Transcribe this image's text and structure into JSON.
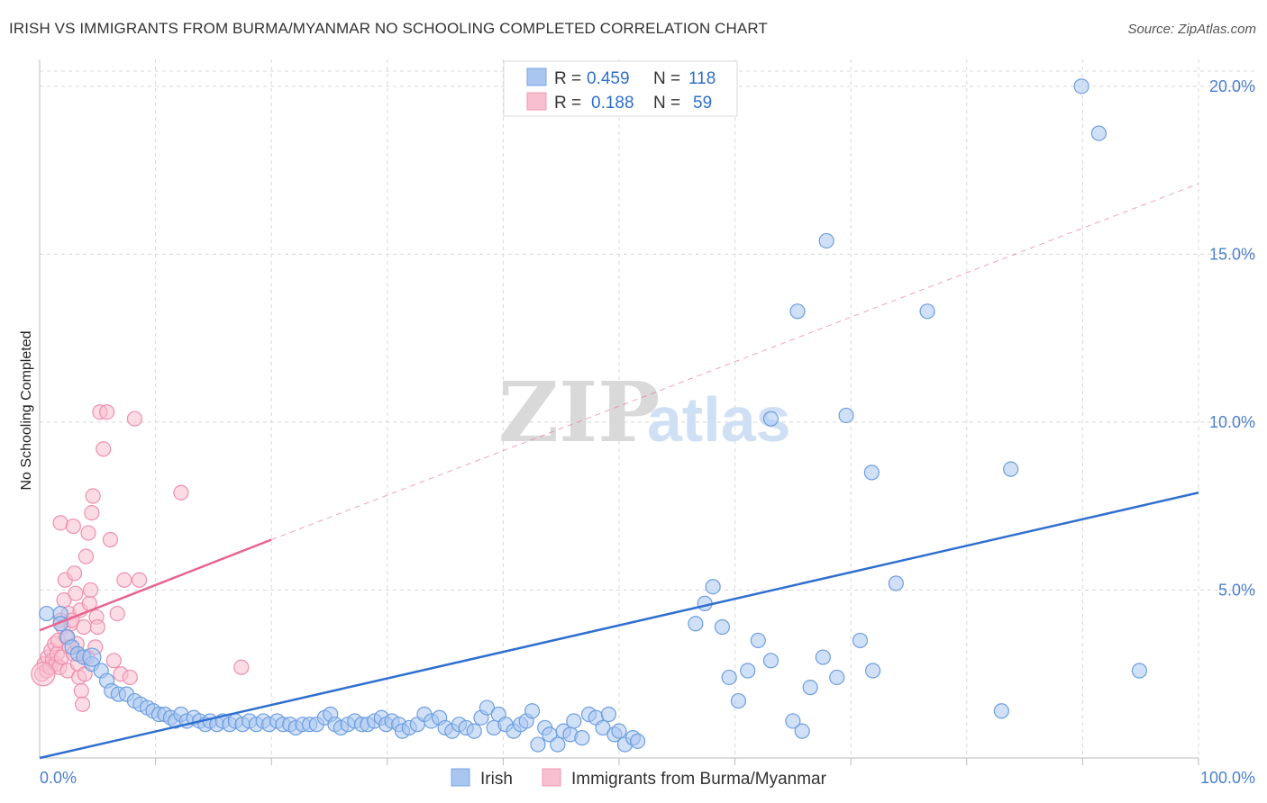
{
  "title": "IRISH VS IMMIGRANTS FROM BURMA/MYANMAR NO SCHOOLING COMPLETED CORRELATION CHART",
  "source": "Source: ZipAtlas.com",
  "watermark": {
    "zip": "ZIP",
    "atlas": "atlas"
  },
  "legend": {
    "r_label": "R =",
    "n_label": "N =",
    "rows": [
      {
        "name": "Irish",
        "r": "0.459",
        "n": "118",
        "color": "#7ba7e3"
      },
      {
        "name": "Immigrants from Burma/Myanmar",
        "r": "0.188",
        "n": "59",
        "color": "#f29ab5"
      }
    ]
  },
  "colors": {
    "irish_fill": "#a9c6f0",
    "irish_stroke": "#6d9ee0",
    "irish_line": "#2f6fd0",
    "burma_fill": "#f7bfd0",
    "burma_stroke": "#ef8fae",
    "burma_line": "#e8648f",
    "grid": "#d8d8d8",
    "tick": "#4a7fd0"
  },
  "chart_data": {
    "type": "scatter",
    "title": "IRISH VS IMMIGRANTS FROM BURMA/MYANMAR NO SCHOOLING COMPLETED CORRELATION CHART",
    "xlabel": "",
    "ylabel": "No Schooling Completed",
    "xlim": [
      0,
      100
    ],
    "ylim": [
      0,
      20.8
    ],
    "x_tick_labels": [
      "0.0%",
      "100.0%"
    ],
    "y_ticks": [
      5,
      10,
      15,
      20
    ],
    "y_tick_labels": [
      "5.0%",
      "10.0%",
      "15.0%",
      "20.0%"
    ],
    "legend_position": "top-center",
    "series": [
      {
        "name": "Irish",
        "R": 0.459,
        "N": 118,
        "trend": {
          "x": [
            0,
            100
          ],
          "y": [
            0.0,
            7.9
          ],
          "style": "solid"
        },
        "points": [
          [
            0.6,
            4.3
          ],
          [
            1.8,
            4.3
          ],
          [
            1.8,
            4.0
          ],
          [
            2.4,
            3.6
          ],
          [
            2.8,
            3.3
          ],
          [
            3.3,
            3.1
          ],
          [
            3.8,
            3.0
          ],
          [
            4.5,
            2.8
          ],
          [
            5.3,
            2.6
          ],
          [
            5.8,
            2.3
          ],
          [
            6.2,
            2.0
          ],
          [
            6.8,
            1.9
          ],
          [
            7.5,
            1.9
          ],
          [
            8.2,
            1.7
          ],
          [
            8.7,
            1.6
          ],
          [
            9.3,
            1.5
          ],
          [
            9.8,
            1.4
          ],
          [
            10.3,
            1.3
          ],
          [
            10.8,
            1.3
          ],
          [
            11.3,
            1.2
          ],
          [
            11.7,
            1.1
          ],
          [
            12.2,
            1.3
          ],
          [
            12.7,
            1.1
          ],
          [
            13.3,
            1.2
          ],
          [
            13.8,
            1.1
          ],
          [
            14.3,
            1.0
          ],
          [
            14.7,
            1.1
          ],
          [
            15.3,
            1.0
          ],
          [
            15.8,
            1.1
          ],
          [
            16.4,
            1.0
          ],
          [
            16.9,
            1.1
          ],
          [
            17.5,
            1.0
          ],
          [
            18.1,
            1.1
          ],
          [
            18.7,
            1.0
          ],
          [
            19.3,
            1.1
          ],
          [
            19.8,
            1.0
          ],
          [
            20.5,
            1.1
          ],
          [
            21.0,
            1.0
          ],
          [
            21.6,
            1.0
          ],
          [
            22.1,
            0.9
          ],
          [
            22.7,
            1.0
          ],
          [
            23.3,
            1.0
          ],
          [
            23.9,
            1.0
          ],
          [
            24.6,
            1.2
          ],
          [
            25.1,
            1.3
          ],
          [
            25.5,
            1.0
          ],
          [
            26.0,
            0.9
          ],
          [
            26.6,
            1.0
          ],
          [
            27.2,
            1.1
          ],
          [
            27.8,
            1.0
          ],
          [
            28.3,
            1.0
          ],
          [
            28.9,
            1.1
          ],
          [
            29.5,
            1.2
          ],
          [
            29.9,
            1.0
          ],
          [
            30.4,
            1.1
          ],
          [
            31.0,
            1.0
          ],
          [
            31.3,
            0.8
          ],
          [
            31.9,
            0.9
          ],
          [
            32.6,
            1.0
          ],
          [
            33.2,
            1.3
          ],
          [
            33.8,
            1.1
          ],
          [
            34.5,
            1.2
          ],
          [
            35.0,
            0.9
          ],
          [
            35.6,
            0.8
          ],
          [
            36.2,
            1.0
          ],
          [
            36.8,
            0.9
          ],
          [
            37.5,
            0.8
          ],
          [
            38.1,
            1.2
          ],
          [
            38.6,
            1.5
          ],
          [
            39.2,
            0.9
          ],
          [
            39.6,
            1.3
          ],
          [
            40.2,
            1.0
          ],
          [
            40.9,
            0.8
          ],
          [
            41.5,
            1.0
          ],
          [
            42.0,
            1.1
          ],
          [
            42.5,
            1.4
          ],
          [
            43.0,
            0.4
          ],
          [
            43.6,
            0.9
          ],
          [
            44.0,
            0.7
          ],
          [
            44.7,
            0.4
          ],
          [
            45.2,
            0.8
          ],
          [
            45.8,
            0.7
          ],
          [
            46.1,
            1.1
          ],
          [
            46.8,
            0.6
          ],
          [
            47.4,
            1.3
          ],
          [
            48.0,
            1.2
          ],
          [
            48.6,
            0.9
          ],
          [
            49.1,
            1.3
          ],
          [
            49.6,
            0.7
          ],
          [
            50.0,
            0.8
          ],
          [
            50.5,
            0.4
          ],
          [
            51.2,
            0.6
          ],
          [
            51.6,
            0.5
          ],
          [
            56.6,
            4.0
          ],
          [
            57.4,
            4.6
          ],
          [
            58.1,
            5.1
          ],
          [
            58.9,
            3.9
          ],
          [
            59.5,
            2.4
          ],
          [
            60.3,
            1.7
          ],
          [
            61.1,
            2.6
          ],
          [
            62.0,
            3.5
          ],
          [
            63.1,
            2.9
          ],
          [
            65.0,
            1.1
          ],
          [
            65.8,
            0.8
          ],
          [
            66.5,
            2.1
          ],
          [
            67.6,
            3.0
          ],
          [
            68.8,
            2.4
          ],
          [
            70.8,
            3.5
          ],
          [
            71.9,
            2.6
          ],
          [
            71.8,
            8.5
          ],
          [
            73.9,
            5.2
          ],
          [
            76.6,
            13.3
          ],
          [
            65.4,
            13.3
          ],
          [
            67.9,
            15.4
          ],
          [
            63.1,
            10.1
          ],
          [
            69.6,
            10.2
          ],
          [
            83.8,
            8.6
          ],
          [
            89.9,
            20.0
          ],
          [
            91.4,
            18.6
          ],
          [
            83.0,
            1.4
          ],
          [
            94.9,
            2.6
          ]
        ]
      },
      {
        "name": "Immigrants from Burma/Myanmar",
        "R": 0.188,
        "N": 59,
        "trend": {
          "x": [
            0,
            20
          ],
          "y": [
            3.8,
            6.5
          ],
          "style": "solid",
          "extension": {
            "x": [
              20,
              100
            ],
            "y": [
              6.5,
              17.1
            ],
            "style": "dashed"
          }
        },
        "points": [
          [
            0.2,
            2.5
          ],
          [
            0.4,
            2.8
          ],
          [
            0.6,
            2.6
          ],
          [
            0.7,
            3.0
          ],
          [
            0.9,
            2.7
          ],
          [
            1.0,
            3.2
          ],
          [
            1.1,
            2.9
          ],
          [
            1.3,
            3.4
          ],
          [
            1.4,
            2.8
          ],
          [
            1.5,
            3.1
          ],
          [
            1.6,
            3.5
          ],
          [
            1.7,
            2.7
          ],
          [
            1.8,
            4.1
          ],
          [
            1.9,
            3.0
          ],
          [
            2.0,
            3.9
          ],
          [
            2.1,
            4.7
          ],
          [
            2.2,
            5.3
          ],
          [
            2.3,
            3.6
          ],
          [
            2.4,
            2.6
          ],
          [
            2.5,
            4.3
          ],
          [
            2.6,
            3.3
          ],
          [
            2.7,
            4.0
          ],
          [
            2.8,
            4.1
          ],
          [
            2.9,
            3.1
          ],
          [
            3.0,
            5.5
          ],
          [
            3.1,
            4.9
          ],
          [
            3.2,
            3.4
          ],
          [
            3.3,
            2.8
          ],
          [
            3.4,
            2.4
          ],
          [
            3.5,
            4.4
          ],
          [
            3.6,
            2.0
          ],
          [
            3.7,
            1.6
          ],
          [
            3.8,
            3.9
          ],
          [
            3.9,
            2.5
          ],
          [
            4.0,
            6.0
          ],
          [
            4.1,
            3.0
          ],
          [
            4.2,
            6.7
          ],
          [
            4.3,
            4.6
          ],
          [
            4.4,
            5.0
          ],
          [
            4.5,
            7.3
          ],
          [
            4.6,
            7.8
          ],
          [
            4.8,
            3.3
          ],
          [
            4.9,
            4.2
          ],
          [
            5.0,
            3.9
          ],
          [
            5.2,
            10.3
          ],
          [
            5.5,
            9.2
          ],
          [
            5.8,
            10.3
          ],
          [
            6.1,
            6.5
          ],
          [
            6.4,
            2.9
          ],
          [
            6.7,
            4.3
          ],
          [
            7.0,
            2.5
          ],
          [
            7.3,
            5.3
          ],
          [
            7.8,
            2.4
          ],
          [
            8.2,
            10.1
          ],
          [
            8.6,
            5.3
          ],
          [
            1.8,
            7.0
          ],
          [
            2.9,
            6.9
          ],
          [
            12.2,
            7.9
          ],
          [
            17.4,
            2.7
          ]
        ]
      }
    ]
  }
}
